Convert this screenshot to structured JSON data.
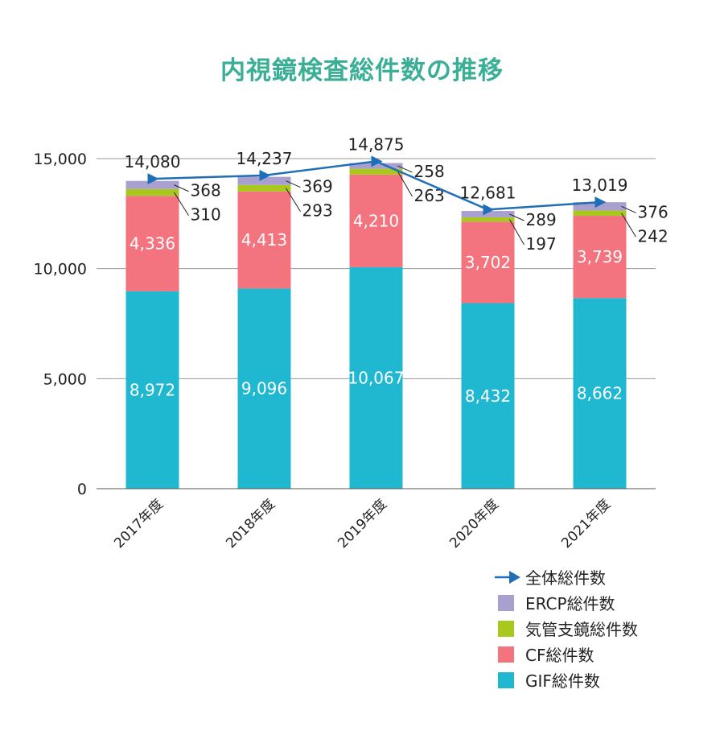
{
  "title": "内視鏡検査総件数の推移",
  "chart_data": {
    "type": "bar",
    "stacked": true,
    "categories": [
      "2017年度",
      "2018年度",
      "2019年度",
      "2020年度",
      "2021年度"
    ],
    "ylim": [
      0,
      15000
    ],
    "yticks": [
      "0",
      "5,000",
      "10,000",
      "15,000"
    ],
    "grid": true,
    "legend_position": "bottom-right",
    "series": [
      {
        "name": "GIF総件数",
        "color": "#1fb8d0",
        "values": [
          8972,
          9096,
          10067,
          8432,
          8662
        ],
        "labels": [
          "8,972",
          "9,096",
          "10,067",
          "8,432",
          "8,662"
        ]
      },
      {
        "name": "CF総件数",
        "color": "#f3737e",
        "values": [
          4336,
          4413,
          4210,
          3702,
          3739
        ],
        "labels": [
          "4,336",
          "4,413",
          "4,210",
          "3,702",
          "3,739"
        ]
      },
      {
        "name": "気管支鏡総件数",
        "color": "#a8c81e",
        "values": [
          310,
          293,
          263,
          197,
          242
        ],
        "labels": [
          "310",
          "293",
          "263",
          "197",
          "242"
        ]
      },
      {
        "name": "ERCP総件数",
        "color": "#a9a0d0",
        "values": [
          368,
          369,
          258,
          289,
          376
        ],
        "labels": [
          "368",
          "369",
          "258",
          "289",
          "376"
        ]
      }
    ],
    "total": {
      "name": "全体総件数",
      "color": "#1f6fb8",
      "values": [
        14080,
        14237,
        14875,
        12681,
        13019
      ],
      "labels": [
        "14,080",
        "14,237",
        "14,875",
        "12,681",
        "13,019"
      ]
    },
    "legend_order": [
      "全体総件数",
      "ERCP総件数",
      "気管支鏡総件数",
      "CF総件数",
      "GIF総件数"
    ]
  }
}
